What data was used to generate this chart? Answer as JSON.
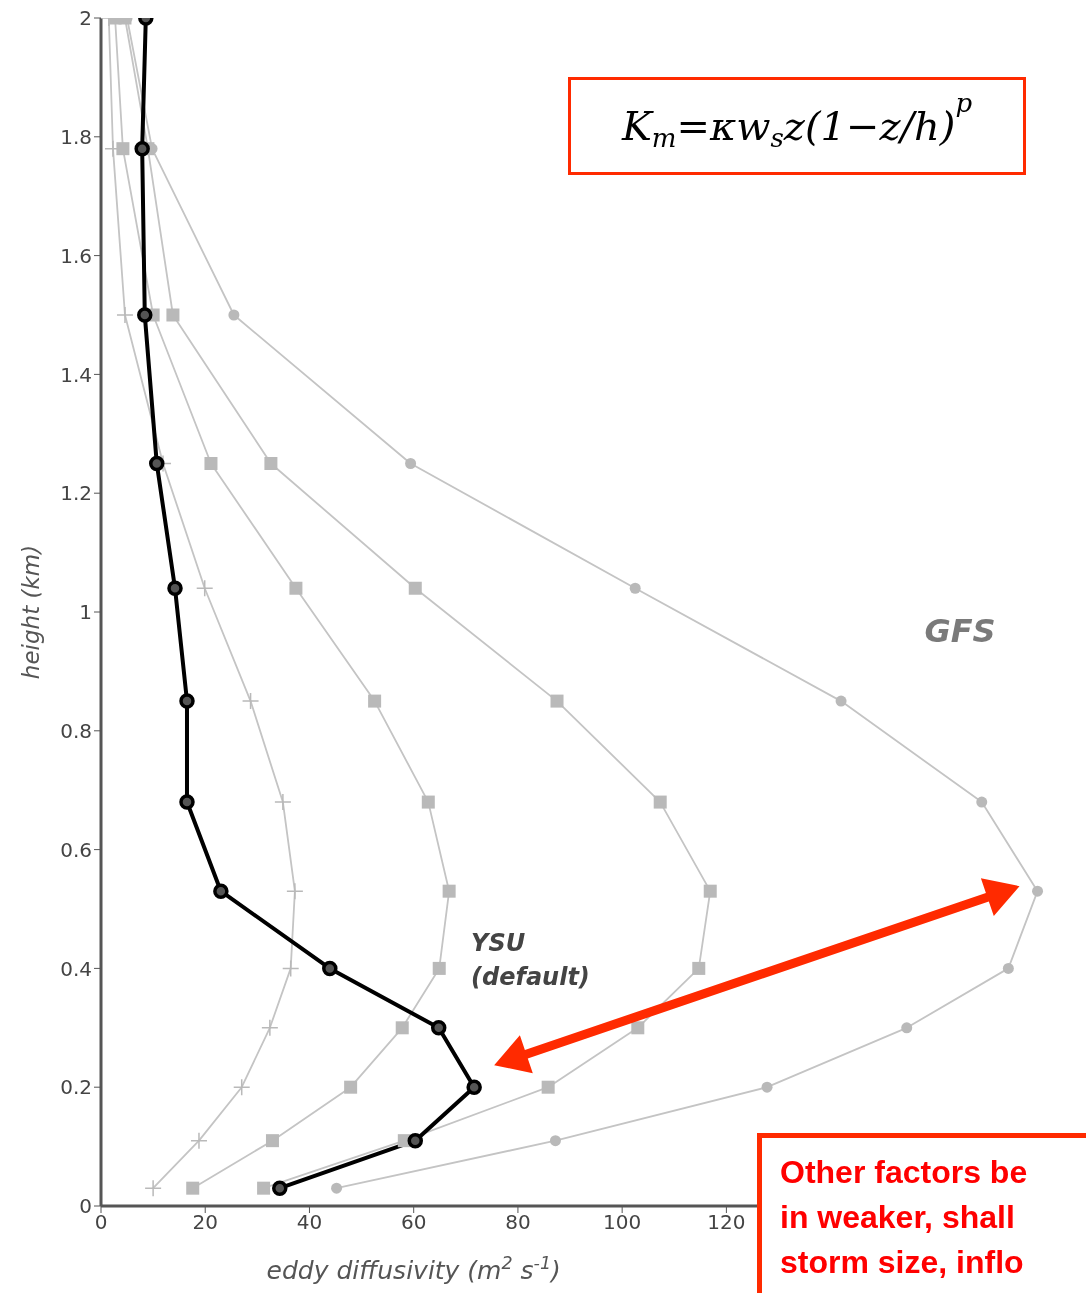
{
  "chart_data": {
    "type": "line",
    "xlabel": "eddy diffusivity (m$^{2}$ s$^{-1}$)",
    "ylabel": "height (km)",
    "xlim": [
      0,
      189
    ],
    "xticks": [
      0,
      20,
      40,
      60,
      80,
      100,
      120
    ],
    "ylim": [
      0,
      2
    ],
    "yticks": [
      0,
      0.2,
      0.4,
      0.6,
      0.8,
      1,
      1.2,
      1.4,
      1.6,
      1.8,
      2
    ],
    "line_style": "solid",
    "series": [
      {
        "color": "#c4c4c4",
        "marker": "cross",
        "x": [
          10,
          18.8,
          27,
          32.4,
          36.4,
          37.2,
          34.9,
          28.7,
          19.9,
          11.9,
          4.6,
          2.3,
          1.5
        ],
        "values": [
          0.03,
          0.11,
          0.2,
          0.3,
          0.4,
          0.53,
          0.68,
          0.85,
          1.04,
          1.25,
          1.5,
          1.78,
          2
        ]
      },
      {
        "color": "#c4c4c4",
        "marker": "square",
        "x": [
          17.6,
          32.9,
          47.9,
          57.8,
          64.9,
          66.8,
          62.8,
          52.5,
          37.4,
          21.1,
          10,
          4.2,
          2.7
        ],
        "values": [
          0.03,
          0.11,
          0.2,
          0.3,
          0.4,
          0.53,
          0.68,
          0.85,
          1.04,
          1.25,
          1.5,
          1.78,
          2
        ]
      },
      {
        "color": "#c4c4c4",
        "marker": "square",
        "x": [
          31.2,
          58.2,
          85.8,
          103,
          114.7,
          116.9,
          107.3,
          87.5,
          60.3,
          32.6,
          13.8,
          9,
          4.6
        ],
        "values": [
          0.03,
          0.11,
          0.2,
          0.3,
          0.4,
          0.53,
          0.68,
          0.85,
          1.04,
          1.25,
          1.5,
          1.78,
          2
        ]
      },
      {
        "color": "#c4c4c4",
        "marker": "circle",
        "x": [
          45.2,
          87.2,
          127.8,
          154.6,
          174.1,
          179.7,
          169,
          142,
          102.5,
          59.4,
          25.5,
          9.8,
          5
        ],
        "values": [
          0.03,
          0.11,
          0.2,
          0.3,
          0.4,
          0.53,
          0.68,
          0.85,
          1.04,
          1.25,
          1.5,
          1.78,
          2
        ]
      },
      {
        "color": "#000000",
        "marker": "circle",
        "x": [
          34.3,
          60.3,
          71.6,
          64.8,
          43.9,
          23,
          16.5,
          16.5,
          14.2,
          10.7,
          8.4,
          7.9,
          8.6
        ],
        "values": [
          0.03,
          0.11,
          0.2,
          0.3,
          0.4,
          0.53,
          0.68,
          0.85,
          1.04,
          1.25,
          1.5,
          1.78,
          2
        ]
      }
    ],
    "annotations": [
      "K$_{m}$=κw$_{s}$z(1−z/h)$^{p}$",
      "GFS",
      "YSU (default)",
      "Other factors be",
      "in weaker, shall",
      "storm size, inflo"
    ]
  }
}
